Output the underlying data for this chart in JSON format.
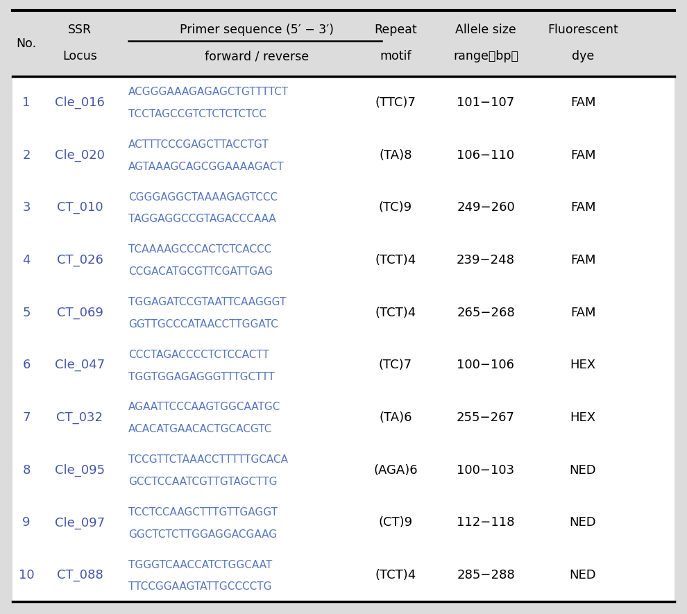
{
  "bg_color": "#dcdcdc",
  "row_bg": "#ffffff",
  "text_color_header": "#000000",
  "text_color_no": "#4455aa",
  "text_color_locus": "#4455aa",
  "text_color_seq": "#5577bb",
  "rows": [
    {
      "no": "1",
      "locus": "Cle_016",
      "fwd": "ACGGGAAAGAGAGCTGTTTTCT",
      "rev": "TCCTAGCCGTCTCTCTCTCC",
      "motif": "(TTC)7",
      "allele": "101−107",
      "dye": "FAM"
    },
    {
      "no": "2",
      "locus": "Cle_020",
      "fwd": "ACTTTCCCGAGCTTACCTGT",
      "rev": "AGTAAAGCAGCGGAAAAGACT",
      "motif": "(TA)8",
      "allele": "106−110",
      "dye": "FAM"
    },
    {
      "no": "3",
      "locus": "CT_010",
      "fwd": "CGGGAGGCTAAAAGAGTCCC",
      "rev": "TAGGAGGCCGTAGACCCAAA",
      "motif": "(TC)9",
      "allele": "249−260",
      "dye": "FAM"
    },
    {
      "no": "4",
      "locus": "CT_026",
      "fwd": "TCAAAAGCCCACTCTCACCC",
      "rev": "CCGACATGCGTTCGATTGAG",
      "motif": "(TCT)4",
      "allele": "239−248",
      "dye": "FAM"
    },
    {
      "no": "5",
      "locus": "CT_069",
      "fwd": "TGGAGATCCGTAATTCAAGGGT",
      "rev": "GGTTGCCCATAACCTTGGATC",
      "motif": "(TCT)4",
      "allele": "265−268",
      "dye": "FAM"
    },
    {
      "no": "6",
      "locus": "Cle_047",
      "fwd": "CCCTAGACCCCTCTCCACTT",
      "rev": "TGGTGGAGAGGGTTTGCTTT",
      "motif": "(TC)7",
      "allele": "100−106",
      "dye": "HEX"
    },
    {
      "no": "7",
      "locus": "CT_032",
      "fwd": "AGAATTCCCAAGTGGCAATGC",
      "rev": "ACACATGAACACTGCACGTC",
      "motif": "(TA)6",
      "allele": "255−267",
      "dye": "HEX"
    },
    {
      "no": "8",
      "locus": "Cle_095",
      "fwd": "TCCGTTCTAAACCTTTTTGCACA",
      "rev": "GCCTCCAATCGTTGTAGCTTG",
      "motif": "(AGA)6",
      "allele": "100−103",
      "dye": "NED"
    },
    {
      "no": "9",
      "locus": "Cle_097",
      "fwd": "TCCTCCAAGCTTTGTTGAGGT",
      "rev": "GGCTCTCTTGGAGGACGAAG",
      "motif": "(CT)9",
      "allele": "112−118",
      "dye": "NED"
    },
    {
      "no": "10",
      "locus": "CT_088",
      "fwd": "TGGGTCAACCATCTGGCAAT",
      "rev": "TTCCGGAAGTATTGCCCCTG",
      "motif": "(TCT)4",
      "allele": "285−288",
      "dye": "NED"
    }
  ],
  "figsize": [
    9.9,
    8.85
  ],
  "dpi": 100,
  "header_line1_no": "No.",
  "header_line1_ssr": "SSR",
  "header_line2_locus": "Locus",
  "header_primer_top": "Primer sequence (5′ − 3′)",
  "header_primer_bot": "forward / reverse",
  "header_repeat_top": "Repeat",
  "header_repeat_bot": "motif",
  "header_allele_top": "Allele size",
  "header_allele_bot": "range（bp）",
  "header_fluor_top": "Fluorescent",
  "header_fluor_bot": "dye"
}
